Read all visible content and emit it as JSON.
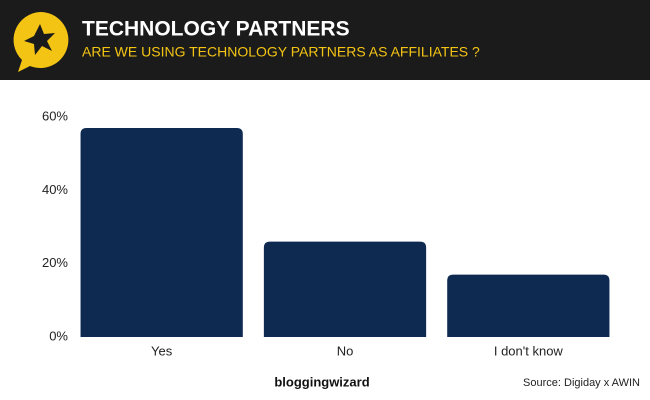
{
  "chart_data": {
    "type": "bar",
    "title": "TECHNOLOGY PARTNERS",
    "subtitle": "ARE WE USING TECHNOLOGY PARTNERS AS AFFILIATES ?",
    "categories": [
      "Yes",
      "No",
      "I don't know"
    ],
    "values": [
      57,
      26,
      17
    ],
    "color": "#0e2a51",
    "ylim": [
      0,
      60
    ],
    "yticks": [
      {
        "value": 0,
        "label": "0%"
      },
      {
        "value": 20,
        "label": "20%"
      },
      {
        "value": 40,
        "label": "40%"
      },
      {
        "value": 60,
        "label": "60%"
      }
    ],
    "grid": false,
    "brand": "bloggingwizard",
    "source": "Source: Digiday x AWIN"
  }
}
